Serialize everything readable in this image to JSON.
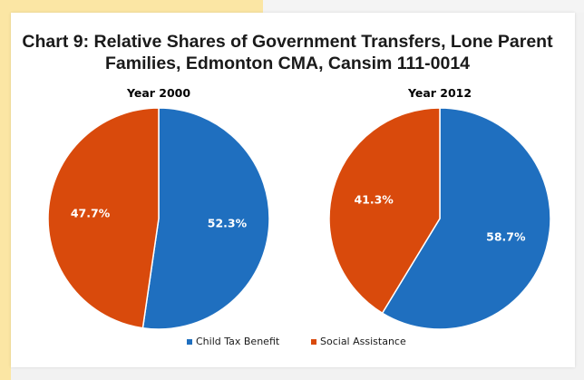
{
  "chart_data": {
    "type": "pie",
    "title_lines": [
      "Chart 9: Relative Shares of Government Transfers, Lone Parent",
      "Families, Edmonton CMA, Cansim 111-0014"
    ],
    "categories": [
      "Child Tax Benefit",
      "Social Assistance"
    ],
    "colors": {
      "Child Tax Benefit": "#1f6fbf",
      "Social Assistance": "#d94a0c"
    },
    "pies": [
      {
        "title": "Year 2000",
        "slices": [
          {
            "name": "Child Tax Benefit",
            "value": 52.3,
            "label": "52.3%"
          },
          {
            "name": "Social Assistance",
            "value": 47.7,
            "label": "47.7%"
          }
        ]
      },
      {
        "title": "Year 2012",
        "slices": [
          {
            "name": "Child Tax Benefit",
            "value": 58.7,
            "label": "58.7%"
          },
          {
            "name": "Social Assistance",
            "value": 41.3,
            "label": "41.3%"
          }
        ]
      }
    ],
    "legend": {
      "position": "bottom",
      "items": [
        {
          "name": "Child Tax Benefit",
          "color": "#1f6fbf"
        },
        {
          "name": "Social Assistance",
          "color": "#d94a0c"
        }
      ]
    }
  }
}
